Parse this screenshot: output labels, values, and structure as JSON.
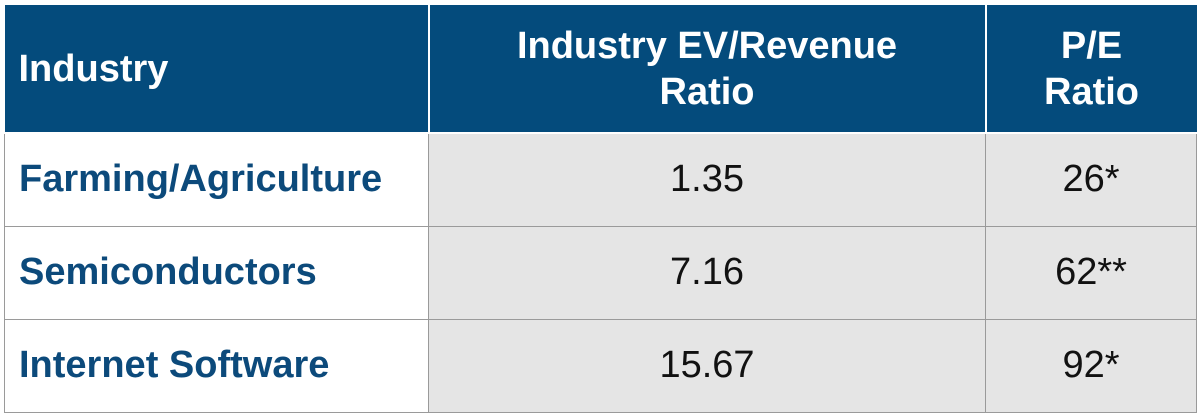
{
  "table": {
    "headers": {
      "industry": "Industry",
      "ev_revenue_line1": "Industry EV/Revenue",
      "ev_revenue_line2": "Ratio",
      "pe_line1": "P/E",
      "pe_line2": "Ratio"
    },
    "rows": [
      {
        "industry": "Farming/Agriculture",
        "ev_revenue": "1.35",
        "pe": "26*"
      },
      {
        "industry": "Semiconductors",
        "ev_revenue": "7.16",
        "pe": "62**"
      },
      {
        "industry": "Internet Software",
        "ev_revenue": "15.67",
        "pe": "92*"
      }
    ]
  },
  "colors": {
    "header_bg": "#044b7c",
    "industry_text": "#0c4a7b",
    "value_bg": "#e5e5e5"
  }
}
